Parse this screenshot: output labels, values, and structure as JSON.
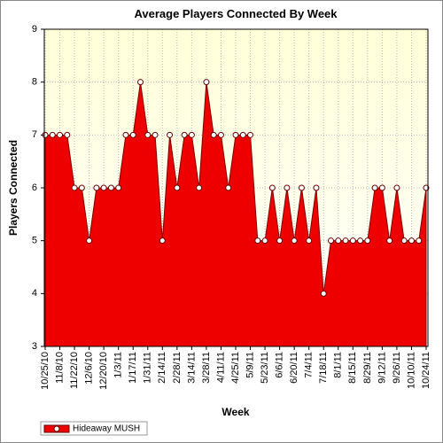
{
  "chart_data": {
    "type": "area",
    "title": "Average Players Connected By Week",
    "x_label": "Week",
    "y_label": "Players Connected",
    "categories": [
      "10/25/10",
      null,
      "11/8/10",
      null,
      "11/22/10",
      null,
      "12/6/10",
      null,
      "12/20/10",
      null,
      "1/3/11",
      null,
      "1/17/11",
      null,
      "1/31/11",
      null,
      "2/14/11",
      null,
      "2/28/11",
      null,
      "3/14/11",
      null,
      "3/28/11",
      null,
      "4/11/11",
      null,
      "4/25/11",
      null,
      "5/9/11",
      null,
      "5/23/11",
      null,
      "6/6/11",
      null,
      "6/20/11",
      null,
      "7/4/11",
      null,
      "7/18/11",
      null,
      "8/1/11",
      null,
      "8/15/11",
      null,
      "8/29/11",
      null,
      "9/12/11",
      null,
      "9/26/11",
      null,
      "10/10/11",
      null,
      "10/24/11"
    ],
    "series": [
      {
        "name": "Hideaway MUSH",
        "color": "#ee0000",
        "values": [
          7,
          7,
          7,
          7,
          6,
          6,
          5,
          6,
          6,
          6,
          6,
          7,
          7,
          8,
          7,
          7,
          5,
          7,
          6,
          7,
          7,
          6,
          8,
          7,
          7,
          6,
          7,
          7,
          7,
          5,
          5,
          6,
          5,
          6,
          5,
          6,
          5,
          6,
          4,
          5,
          5,
          5,
          5,
          5,
          5,
          6,
          6,
          5,
          6,
          5,
          5,
          5,
          6
        ]
      }
    ],
    "ylim": [
      3,
      9
    ],
    "yticks": [
      3,
      4,
      5,
      6,
      7,
      8,
      9
    ],
    "grid": true,
    "legend": "bottom-left"
  }
}
